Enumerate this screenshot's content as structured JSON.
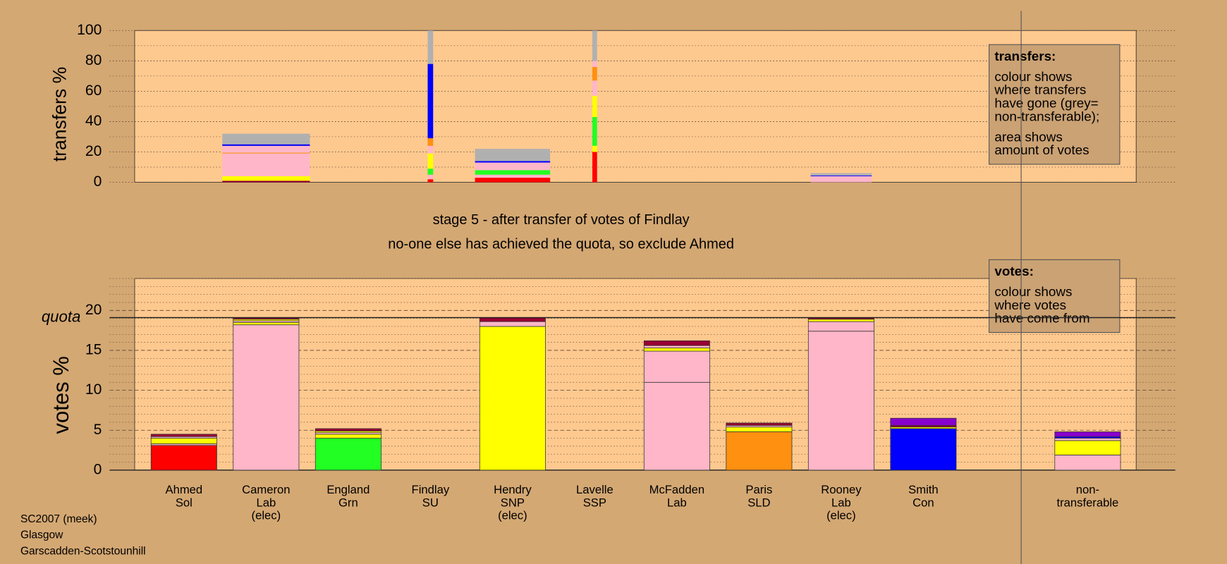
{
  "stage_lines": [
    "stage 5 - after transfer of votes of Findlay",
    "no-one else has achieved the quota, so exclude Ahmed"
  ],
  "footer": [
    "SC2007 (meek)",
    "Glasgow",
    "Garscadden-Scotstounhill"
  ],
  "chart_data": [
    {
      "type": "stacked_bar",
      "ylabel": "transfers %",
      "ylim": [
        0,
        100
      ],
      "yticks": [
        0,
        20,
        40,
        60,
        80,
        100
      ],
      "yminor": [
        10,
        30,
        50,
        70,
        90
      ],
      "legend": {
        "title": "transfers:",
        "paragraphs": [
          [
            "colour shows",
            "where transfers",
            "have gone (grey=",
            "non-transferable);"
          ],
          [
            "area shows",
            "amount of votes"
          ]
        ]
      },
      "bars": [
        null,
        {
          "amount": 11.2,
          "segments": [
            {
              "color": "#990033",
              "value": 1
            },
            {
              "color": "#ffff00",
              "value": 3
            },
            {
              "color": "#ffb6c8",
              "value": 15
            },
            {
              "color": "#ff9010",
              "value": 0.5
            },
            {
              "color": "#ffb6c8",
              "value": 4.5
            },
            {
              "color": "#0000ff",
              "value": 1
            },
            {
              "color": "#b0b0b0",
              "value": 7
            }
          ]
        },
        null,
        {
          "amount": 0.7,
          "segments": [
            {
              "color": "#ff0000",
              "value": 2
            },
            {
              "color": "#ffb6c8",
              "value": 3
            },
            {
              "color": "#22ff22",
              "value": 4
            },
            {
              "color": "#ffff00",
              "value": 10
            },
            {
              "color": "#ffb6c8",
              "value": 5
            },
            {
              "color": "#ff9010",
              "value": 5
            },
            {
              "color": "#0000ff",
              "value": 49
            },
            {
              "color": "#b0b0b0",
              "value": 22
            }
          ]
        },
        {
          "amount": 9.6,
          "segments": [
            {
              "color": "#ff0000",
              "value": 3
            },
            {
              "color": "#ffb6c8",
              "value": 2
            },
            {
              "color": "#22ff22",
              "value": 3
            },
            {
              "color": "#ffb6c8",
              "value": 5
            },
            {
              "color": "#0000ff",
              "value": 1
            },
            {
              "color": "#b0b0b0",
              "value": 8
            }
          ]
        },
        {
          "amount": 0.6,
          "segments": [
            {
              "color": "#ff0000",
              "value": 20
            },
            {
              "color": "#ffff00",
              "value": 4
            },
            {
              "color": "#22ff22",
              "value": 19
            },
            {
              "color": "#ffff00",
              "value": 14
            },
            {
              "color": "#ffb6c8",
              "value": 10
            },
            {
              "color": "#ff9010",
              "value": 9
            },
            {
              "color": "#ffb6c8",
              "value": 4
            },
            {
              "color": "#b0b0b0",
              "value": 20
            }
          ]
        },
        null,
        null,
        {
          "amount": 7.8,
          "segments": [
            {
              "color": "#ffb6c8",
              "value": 4
            },
            {
              "color": "#0000ff",
              "value": 0.5
            },
            {
              "color": "#b0b0b0",
              "value": 1.5
            }
          ]
        },
        null,
        null,
        null
      ]
    },
    {
      "type": "stacked_bar",
      "ylabel": "votes %",
      "ylim": [
        0,
        24
      ],
      "yticks": [
        0,
        5,
        10,
        15,
        20
      ],
      "yminor": [
        1,
        2,
        3,
        4,
        6,
        7,
        8,
        9,
        11,
        12,
        13,
        14,
        16,
        17,
        18,
        19,
        21,
        22,
        23,
        24
      ],
      "quota": 19.1,
      "quota_label": "quota",
      "legend": {
        "title": "votes:",
        "paragraphs": [
          [
            "colour shows",
            "where votes",
            "have come from"
          ]
        ]
      },
      "categories": [
        [
          "Ahmed",
          "Sol"
        ],
        [
          "Cameron",
          "Lab",
          "(elec)"
        ],
        [
          "England",
          "Grn"
        ],
        [
          "Findlay",
          "SU"
        ],
        [
          "Hendry",
          "SNP",
          "(elec)"
        ],
        [
          "Lavelle",
          "SSP"
        ],
        [
          "McFadden",
          "Lab"
        ],
        [
          "Paris",
          "SLD"
        ],
        [
          "Rooney",
          "Lab",
          "(elec)"
        ],
        [
          "Smith",
          "Con"
        ],
        null,
        [
          "non-",
          "transferable"
        ]
      ],
      "bars": [
        {
          "segments": [
            {
              "color": "#ff0000",
              "value": 3.1
            },
            {
              "color": "#ffb6c8",
              "value": 0.2
            },
            {
              "color": "#ffff00",
              "value": 0.7
            },
            {
              "color": "#ffb6c8",
              "value": 0.2
            },
            {
              "color": "#990033",
              "value": 0.3
            }
          ]
        },
        {
          "segments": [
            {
              "color": "#ffb6c8",
              "value": 18.2
            },
            {
              "color": "#ffff00",
              "value": 0.3
            },
            {
              "color": "#ffb6c8",
              "value": 0.2
            },
            {
              "color": "#ffff00",
              "value": 0.2
            },
            {
              "color": "#990033",
              "value": 0.2
            }
          ]
        },
        {
          "segments": [
            {
              "color": "#22ff22",
              "value": 4.0
            },
            {
              "color": "#ffff00",
              "value": 0.5
            },
            {
              "color": "#ffb6c8",
              "value": 0.2
            },
            {
              "color": "#ffff00",
              "value": 0.2
            },
            {
              "color": "#990033",
              "value": 0.3
            }
          ]
        },
        null,
        {
          "segments": [
            {
              "color": "#ffff00",
              "value": 18.0
            },
            {
              "color": "#ffb6c8",
              "value": 0.6
            },
            {
              "color": "#990033",
              "value": 0.5
            }
          ]
        },
        null,
        {
          "segments": [
            {
              "color": "#ffb6c8",
              "value": 11.0
            },
            {
              "color": "#ffb6c8",
              "value": 3.9
            },
            {
              "color": "#ffff00",
              "value": 0.4
            },
            {
              "color": "#ffb6c8",
              "value": 0.3
            },
            {
              "color": "#990033",
              "value": 0.6
            }
          ]
        },
        {
          "segments": [
            {
              "color": "#ff9010",
              "value": 4.8
            },
            {
              "color": "#ffff00",
              "value": 0.6
            },
            {
              "color": "#ffb6c8",
              "value": 0.2
            },
            {
              "color": "#990033",
              "value": 0.3
            }
          ]
        },
        {
          "segments": [
            {
              "color": "#ffb6c8",
              "value": 17.4
            },
            {
              "color": "#ffb6c8",
              "value": 1.2
            },
            {
              "color": "#ffff00",
              "value": 0.3
            },
            {
              "color": "#990033",
              "value": 0.2
            }
          ]
        },
        {
          "segments": [
            {
              "color": "#0000ff",
              "value": 5.2
            },
            {
              "color": "#ffff00",
              "value": 0.2
            },
            {
              "color": "#990033",
              "value": 0.2
            },
            {
              "color": "#8800cc",
              "value": 0.9
            }
          ]
        },
        null,
        {
          "segments": [
            {
              "color": "#ffb6c8",
              "value": 1.9
            },
            {
              "color": "#ffff00",
              "value": 1.8
            },
            {
              "color": "#ffb6c8",
              "value": 0.3
            },
            {
              "color": "#0000ff",
              "value": 0.2
            },
            {
              "color": "#8800cc",
              "value": 0.6
            }
          ]
        }
      ]
    }
  ]
}
